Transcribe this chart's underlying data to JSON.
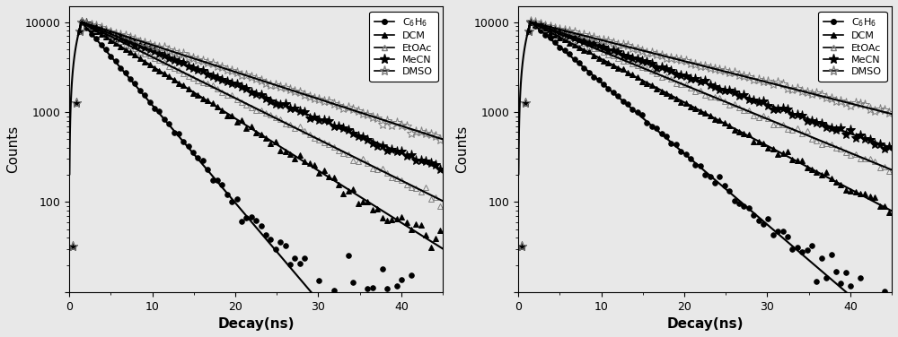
{
  "panel1": {
    "xlabel": "Decay(ns)",
    "ylabel": "Counts",
    "xlim": [
      0,
      45
    ],
    "ylim": [
      10,
      15000
    ],
    "series": [
      {
        "label": "C$_6$H$_6$",
        "tau": 4.0,
        "marker": "o",
        "filled": true,
        "peak_start": 1.5
      },
      {
        "label": "DCM",
        "tau": 7.5,
        "marker": "^",
        "filled": true,
        "peak_start": 1.5
      },
      {
        "label": "EtOAc",
        "tau": 9.5,
        "marker": "^",
        "filled": false,
        "peak_start": 1.5
      },
      {
        "label": "MeCN",
        "tau": 11.5,
        "marker": "*",
        "filled": true,
        "peak_start": 1.5
      },
      {
        "label": "DMSO",
        "tau": 14.5,
        "marker": "*",
        "filled": false,
        "peak_start": 1.5
      }
    ]
  },
  "panel2": {
    "xlabel": "Decay(ns)",
    "ylabel": "Counts",
    "xlim": [
      0,
      45
    ],
    "ylim": [
      10,
      15000
    ],
    "series": [
      {
        "label": "C$_6$H$_6$",
        "tau": 5.5,
        "marker": "o",
        "filled": true,
        "peak_start": 1.5
      },
      {
        "label": "DCM",
        "tau": 9.0,
        "marker": "^",
        "filled": true,
        "peak_start": 1.5
      },
      {
        "label": "EtOAc",
        "tau": 11.5,
        "marker": "^",
        "filled": false,
        "peak_start": 1.5
      },
      {
        "label": "MeCN",
        "tau": 13.5,
        "marker": "*",
        "filled": true,
        "peak_start": 1.5
      },
      {
        "label": "DMSO",
        "tau": 18.5,
        "marker": "*",
        "filled": false,
        "peak_start": 1.5
      }
    ]
  },
  "bg_color": "#e8e8e8",
  "plot_bg": "#e8e8e8",
  "peak_count": 10000,
  "color": "black",
  "marker_size_circle": 4,
  "marker_size_triangle": 5,
  "marker_size_star": 8,
  "legend_fontsize": 8,
  "axis_label_fontsize": 11,
  "tick_label_fontsize": 9,
  "fit_linewidth": 1.5
}
